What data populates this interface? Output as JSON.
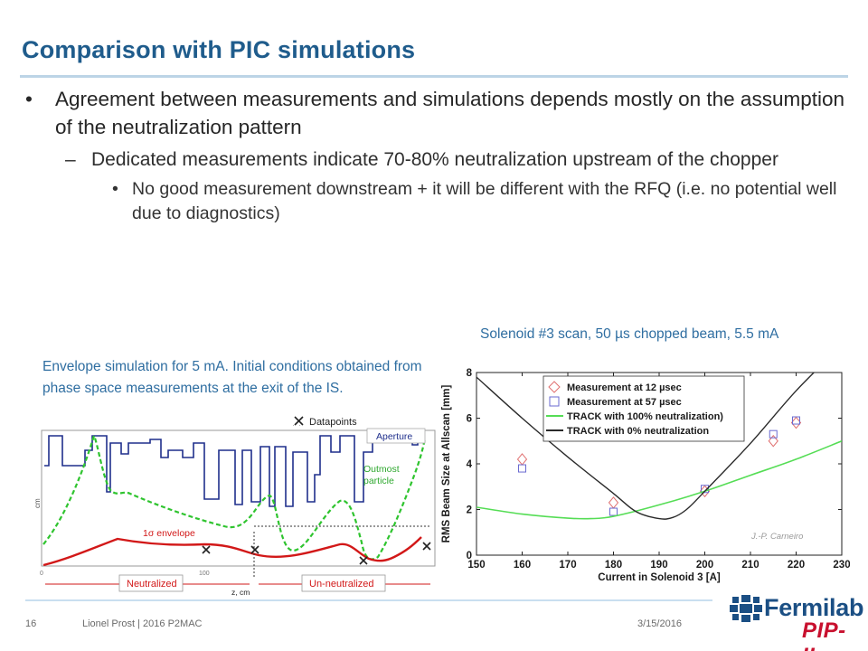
{
  "title": "Comparison with PIC simulations",
  "bullets": {
    "level1": "Agreement between measurements and simulations depends mostly on the assumption of the neutralization pattern",
    "level2": "Dedicated measurements indicate 70-80% neutralization upstream of the chopper",
    "level3": "No good measurement downstream + it will be different with the RFQ (i.e. no potential well due to diagnostics)",
    "mark1": "•",
    "mark2": "–",
    "mark3": "•"
  },
  "captions": {
    "left": "Envelope simulation for 5 mA. Initial conditions obtained from phase space measurements  at the exit of the IS.",
    "right": "Solenoid #3 scan, 50 µs chopped beam, 5.5 mA"
  },
  "envelope_figure": {
    "legend_datapoints": "Datapoints",
    "label_aperture": "Aperture",
    "label_outmost": "Outmost particle",
    "label_envelope": "1σ envelope",
    "label_neutralized": "Neutralized",
    "label_unneutralized": "Un-neutralized",
    "xlabel": "z, cm",
    "ylabel": "cm",
    "tick_x_0": "0",
    "tick_x_100": "100",
    "colors": {
      "aperture": "#1f2f8c",
      "outmost": "#2fc42f",
      "envelope": "#d21818",
      "label": "#d21818"
    }
  },
  "chart_data": {
    "type": "line",
    "xlabel": "Current in Solenoid 3 [A]",
    "ylabel": "RMS Beam Size at Allscan [mm]",
    "xlim": [
      150,
      230
    ],
    "ylim": [
      0,
      8
    ],
    "x_ticks": [
      "150",
      "160",
      "170",
      "180",
      "190",
      "200",
      "210",
      "220",
      "230"
    ],
    "y_ticks": [
      "0",
      "2",
      "4",
      "6",
      "8"
    ],
    "credit": "J.-P. Carneiro",
    "legend": [
      {
        "name": "Measurement at 12 µsec",
        "marker": "diamond",
        "color": "#e07070"
      },
      {
        "name": "Measurement at 57 µsec",
        "marker": "square",
        "color": "#6a6ad0"
      },
      {
        "name": "TRACK with 100% neutralization)",
        "marker": "line",
        "color": "#55dd55"
      },
      {
        "name": "TRACK with 0% neutralization",
        "marker": "line",
        "color": "#2a2a2a"
      }
    ],
    "series": [
      {
        "name": "Measurement at 12 µsec",
        "kind": "scatter",
        "marker": "diamond",
        "color": "#e07070",
        "x": [
          160,
          180,
          200,
          215,
          220
        ],
        "y": [
          4.2,
          2.3,
          2.8,
          5.0,
          5.8
        ]
      },
      {
        "name": "Measurement at 57 µsec",
        "kind": "scatter",
        "marker": "square",
        "color": "#6a6ad0",
        "x": [
          160,
          180,
          200,
          215,
          220
        ],
        "y": [
          3.8,
          1.9,
          2.9,
          5.3,
          5.9
        ]
      },
      {
        "name": "TRACK with 100% neutralization)",
        "kind": "line",
        "color": "#55dd55",
        "x": [
          150,
          160,
          170,
          175,
          180,
          190,
          200,
          210,
          220,
          230
        ],
        "y": [
          2.1,
          1.8,
          1.62,
          1.6,
          1.7,
          2.2,
          2.8,
          3.5,
          4.2,
          5.0
        ]
      },
      {
        "name": "TRACK with 0% neutralization",
        "kind": "line",
        "color": "#2a2a2a",
        "x": [
          150,
          160,
          170,
          180,
          185,
          190,
          193,
          196,
          200,
          210,
          220,
          230
        ],
        "y": [
          7.8,
          6.0,
          4.3,
          2.7,
          1.9,
          1.6,
          1.65,
          2.0,
          2.8,
          4.9,
          7.2,
          9.2
        ]
      }
    ]
  },
  "footer": {
    "page_number": "16",
    "author": "Lionel Prost | 2016 P2MAC",
    "date": "3/15/2016"
  },
  "logo": {
    "name": "Fermilab",
    "project": "PIP-II"
  }
}
